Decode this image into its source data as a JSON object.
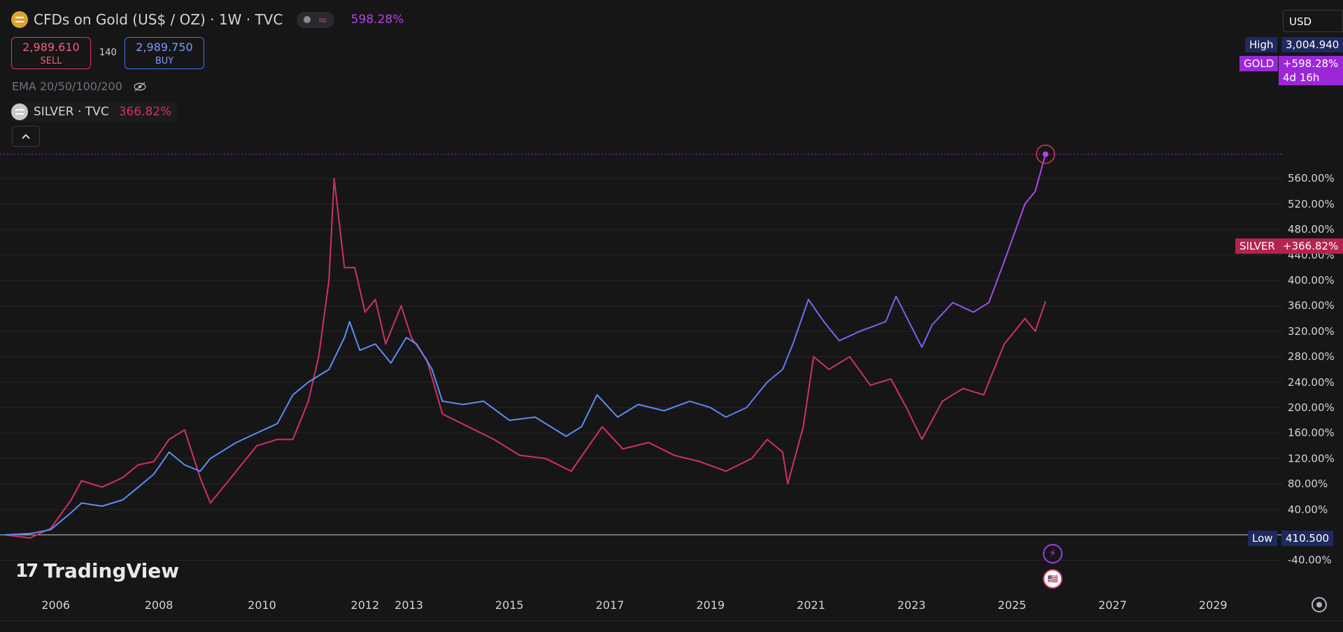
{
  "header": {
    "symbol_title": "CFDs on Gold (US$ / OZ) · 1W · TVC",
    "status_wave": "≈",
    "change_pct": "598.28%"
  },
  "trade": {
    "sell_price": "2,989.610",
    "sell_label": "SELL",
    "spread": "140",
    "buy_price": "2,989.750",
    "buy_label": "BUY"
  },
  "indicators": {
    "ema_label": "EMA 20/50/100/200"
  },
  "compare": {
    "label": "SILVER · TVC",
    "pct": "366.82%"
  },
  "price_scale": {
    "currency": "USD",
    "high_label": "High",
    "high_value": "3,004.940",
    "low_label": "Low",
    "low_value": "410.500",
    "gold_tag": "GOLD",
    "gold_value": "+598.28%",
    "countdown": "4d 16h",
    "silver_tag": "SILVER",
    "silver_value": "+366.82%"
  },
  "branding": {
    "logo_text": "TradingView",
    "logo_mark": "17"
  },
  "colors": {
    "background": "#161616",
    "gold_line_old": "#5b8df5",
    "gold_line_new": "#b542ea",
    "silver_line": "#d0306a",
    "grid": "#262626",
    "high_tag_bg": "#1e2a5e",
    "gold_tag_bg": "#9c27d9",
    "silver_tag_bg": "#b5234f"
  },
  "icons": [
    "gold-icon",
    "silver-icon",
    "eye-slash-icon",
    "chevron-up-icon",
    "lightning-icon",
    "us-flag-icon",
    "settings-icon"
  ],
  "chart_data": {
    "type": "line",
    "title": "CFDs on Gold (US$ / OZ) · 1W · TVC",
    "xlabel": "",
    "ylabel": "",
    "y_unit": "%",
    "ylim": [
      -50,
      610
    ],
    "y_ticks": [
      -40,
      40,
      80,
      120,
      160,
      200,
      240,
      280,
      320,
      360,
      400,
      440,
      480,
      520,
      560
    ],
    "x_ticks": [
      "2006",
      "2008",
      "2010",
      "2012",
      "2013",
      "2015",
      "2017",
      "2019",
      "2021",
      "2023",
      "2025",
      "2027",
      "2029"
    ],
    "grid": true,
    "series": [
      {
        "name": "GOLD",
        "x": [
          2005.0,
          2005.5,
          2005.9,
          2006.3,
          2006.5,
          2006.9,
          2007.3,
          2007.6,
          2007.9,
          2008.2,
          2008.5,
          2008.8,
          2009.0,
          2009.5,
          2009.9,
          2010.3,
          2010.6,
          2010.9,
          2011.3,
          2011.6,
          2011.7,
          2011.9,
          2012.2,
          2012.5,
          2012.8,
          2013.0,
          2013.3,
          2013.5,
          2013.9,
          2014.3,
          2014.8,
          2015.3,
          2015.9,
          2016.2,
          2016.5,
          2016.9,
          2017.3,
          2017.8,
          2018.3,
          2018.7,
          2019.0,
          2019.4,
          2019.8,
          2020.1,
          2020.3,
          2020.6,
          2020.9,
          2021.2,
          2021.6,
          2022.1,
          2022.3,
          2022.8,
          2023.0,
          2023.4,
          2023.8,
          2024.1,
          2024.4,
          2024.8,
          2025.0,
          2025.2
        ],
        "values": [
          0,
          2,
          8,
          35,
          50,
          45,
          55,
          75,
          95,
          130,
          110,
          100,
          120,
          145,
          160,
          175,
          220,
          240,
          260,
          310,
          335,
          290,
          300,
          270,
          310,
          300,
          260,
          210,
          205,
          210,
          180,
          185,
          155,
          170,
          220,
          185,
          205,
          195,
          210,
          200,
          185,
          200,
          240,
          260,
          300,
          370,
          335,
          305,
          320,
          335,
          375,
          295,
          330,
          365,
          350,
          365,
          430,
          520,
          540,
          598.28
        ]
      },
      {
        "name": "SILVER",
        "x": [
          2005.0,
          2005.5,
          2005.9,
          2006.3,
          2006.5,
          2006.9,
          2007.3,
          2007.6,
          2007.9,
          2008.2,
          2008.5,
          2008.8,
          2009.0,
          2009.5,
          2009.9,
          2010.3,
          2010.6,
          2010.9,
          2011.1,
          2011.3,
          2011.4,
          2011.6,
          2011.8,
          2012.0,
          2012.2,
          2012.4,
          2012.7,
          2012.9,
          2013.2,
          2013.5,
          2014.0,
          2014.5,
          2015.0,
          2015.5,
          2016.0,
          2016.3,
          2016.6,
          2017.0,
          2017.5,
          2018.0,
          2018.5,
          2019.0,
          2019.5,
          2019.8,
          2020.1,
          2020.2,
          2020.5,
          2020.7,
          2021.0,
          2021.4,
          2021.8,
          2022.2,
          2022.5,
          2022.8,
          2023.2,
          2023.6,
          2024.0,
          2024.4,
          2024.8,
          2025.0,
          2025.2
        ],
        "values": [
          0,
          -5,
          10,
          55,
          85,
          75,
          90,
          110,
          115,
          150,
          165,
          90,
          50,
          100,
          140,
          150,
          150,
          210,
          280,
          400,
          560,
          420,
          420,
          350,
          370,
          300,
          360,
          310,
          275,
          190,
          170,
          150,
          125,
          120,
          100,
          135,
          170,
          135,
          145,
          125,
          115,
          100,
          120,
          150,
          130,
          80,
          170,
          280,
          260,
          280,
          235,
          245,
          200,
          150,
          210,
          230,
          220,
          300,
          340,
          320,
          366.82
        ]
      }
    ],
    "annotations": [
      "High 3,004.940",
      "Low 410.500",
      "4d 16h"
    ]
  }
}
